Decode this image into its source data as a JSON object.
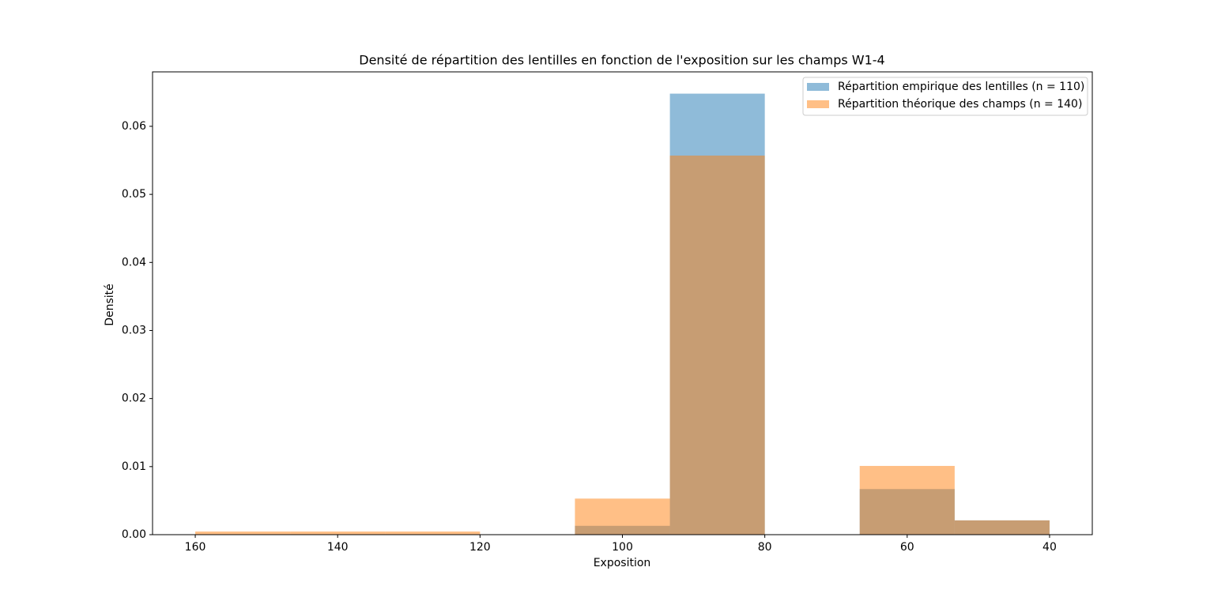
{
  "chart_data": {
    "type": "histogram",
    "title": "Densité de répartition des lentilles en fonction de l'exposition sur les champs W1-4",
    "x_label": "Exposition",
    "y_label": "Densité",
    "bins": [
      40,
      53.33,
      66.67,
      80,
      93.33,
      106.67,
      120,
      133.33,
      146.67,
      160
    ],
    "series": [
      {
        "name": "Répartition empirique des lentilles (n = 110)",
        "color": "#1f77b4",
        "opacity": 0.5,
        "values": [
          0.0021,
          0.0067,
          0,
          0.0648,
          0.0013,
          0,
          0,
          0,
          0
        ]
      },
      {
        "name": "Répartition théorique des champs (n = 140)",
        "color": "#ff7f0e",
        "opacity": 0.5,
        "values": [
          0.0021,
          0.0101,
          0,
          0.0557,
          0.0053,
          0,
          0.00046,
          0.00046,
          0.00046
        ]
      }
    ],
    "xlim": [
      166,
      34
    ],
    "xticks": [
      160,
      140,
      120,
      100,
      80,
      60,
      40
    ],
    "ylim": [
      0,
      0.068
    ],
    "yticks": [
      {
        "value": 0,
        "label": "0.00"
      },
      {
        "value": 0.01,
        "label": "0.01"
      },
      {
        "value": 0.02,
        "label": "0.02"
      },
      {
        "value": 0.03,
        "label": "0.03"
      },
      {
        "value": 0.04,
        "label": "0.04"
      },
      {
        "value": 0.05,
        "label": "0.05"
      },
      {
        "value": 0.06,
        "label": "0.06"
      }
    ],
    "legend": "upper right"
  }
}
